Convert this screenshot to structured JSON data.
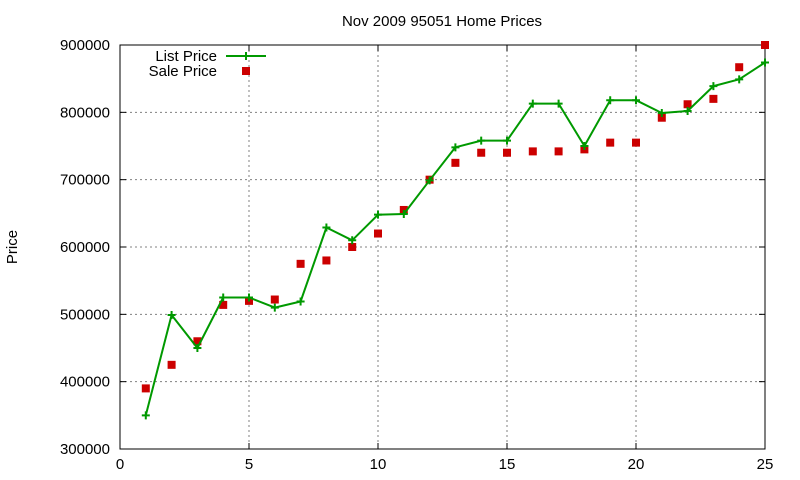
{
  "chart_data": {
    "type": "line",
    "title": "Nov 2009 95051 Home Prices",
    "xlabel": "",
    "ylabel": "Price",
    "xlim": [
      0,
      25
    ],
    "ylim": [
      300000,
      900000
    ],
    "x_ticks": [
      0,
      5,
      10,
      15,
      20,
      25
    ],
    "y_ticks": [
      300000,
      400000,
      500000,
      600000,
      700000,
      800000,
      900000
    ],
    "grid": true,
    "legend_position": "top-left",
    "x": [
      1,
      2,
      3,
      4,
      5,
      6,
      7,
      8,
      9,
      10,
      11,
      12,
      13,
      14,
      15,
      16,
      17,
      18,
      19,
      20,
      21,
      22,
      23,
      24,
      25
    ],
    "series": [
      {
        "name": "List Price",
        "style": "line-plus",
        "color": "#009900",
        "values": [
          350000,
          499000,
          450000,
          525000,
          525000,
          510000,
          519000,
          629000,
          610000,
          648000,
          649000,
          699000,
          748000,
          758000,
          758000,
          813000,
          813000,
          750000,
          818000,
          818000,
          799000,
          802000,
          839000,
          849000,
          874000
        ]
      },
      {
        "name": "Sale Price",
        "style": "square",
        "color": "#cc0000",
        "values": [
          390000,
          425000,
          460000,
          514000,
          520000,
          522000,
          575000,
          580000,
          600000,
          620000,
          655000,
          700000,
          725000,
          740000,
          740000,
          742000,
          742000,
          745000,
          755000,
          755000,
          792000,
          812000,
          820000,
          867000,
          900000
        ]
      }
    ]
  }
}
